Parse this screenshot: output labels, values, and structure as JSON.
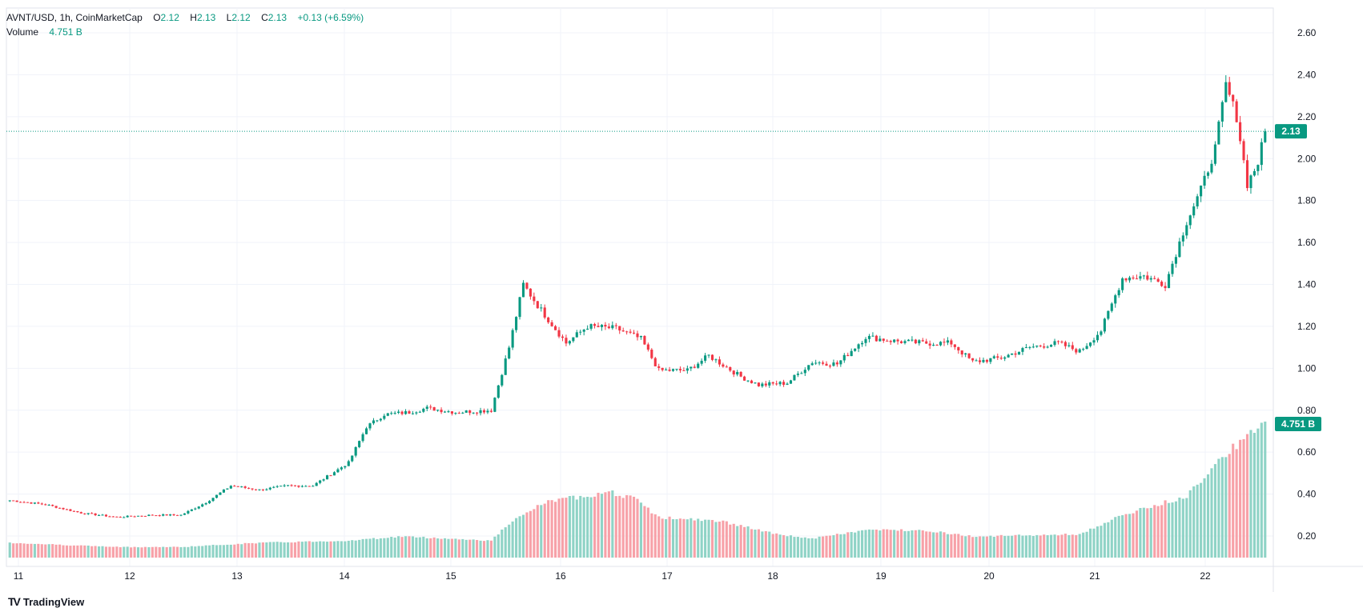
{
  "header": {
    "symbol": "AVNT/USD, 1h, CoinMarketCap",
    "o_label": "O",
    "o_value": "2.12",
    "h_label": "H",
    "h_value": "2.13",
    "l_label": "L",
    "l_value": "2.12",
    "c_label": "C",
    "c_value": "2.13",
    "change": "+0.13 (+6.59%)",
    "volume_label": "Volume",
    "volume_value": "4.751 B"
  },
  "price_badge": "2.13",
  "volume_badge": "4.751 B",
  "branding": "TradingView",
  "colors": {
    "up": "#089981",
    "down": "#f23645",
    "vol_up": "#8fd3c6",
    "vol_down": "#f7a1a8",
    "grid": "#f0f3fa",
    "last_price": "#089981"
  },
  "chart_data": {
    "type": "candlestick",
    "interval": "1h",
    "y_ticks": [
      "2.60",
      "2.40",
      "2.20",
      "2.00",
      "1.80",
      "1.60",
      "1.40",
      "1.20",
      "1.00",
      "0.80",
      "0.60",
      "0.40",
      "0.20"
    ],
    "ylim": [
      0.0,
      2.7
    ],
    "x_ticks": [
      "11",
      "12",
      "13",
      "14",
      "15",
      "16",
      "17",
      "18",
      "19",
      "20",
      "21",
      "22"
    ],
    "last_price": 2.13,
    "last_volume": "4.751 B",
    "price_anchors": [
      [
        0,
        0.37
      ],
      [
        10,
        0.35
      ],
      [
        20,
        0.31
      ],
      [
        30,
        0.29
      ],
      [
        40,
        0.3
      ],
      [
        48,
        0.3
      ],
      [
        55,
        0.36
      ],
      [
        62,
        0.44
      ],
      [
        70,
        0.42
      ],
      [
        78,
        0.44
      ],
      [
        85,
        0.44
      ],
      [
        95,
        0.55
      ],
      [
        100,
        0.72
      ],
      [
        105,
        0.78
      ],
      [
        112,
        0.79
      ],
      [
        117,
        0.81
      ],
      [
        125,
        0.79
      ],
      [
        135,
        0.8
      ],
      [
        140,
        1.1
      ],
      [
        144,
        1.4
      ],
      [
        148,
        1.3
      ],
      [
        156,
        1.12
      ],
      [
        162,
        1.2
      ],
      [
        170,
        1.19
      ],
      [
        177,
        1.14
      ],
      [
        182,
        0.99
      ],
      [
        190,
        0.99
      ],
      [
        196,
        1.06
      ],
      [
        205,
        0.96
      ],
      [
        210,
        0.92
      ],
      [
        218,
        0.93
      ],
      [
        225,
        1.03
      ],
      [
        232,
        1.02
      ],
      [
        240,
        1.15
      ],
      [
        248,
        1.13
      ],
      [
        256,
        1.12
      ],
      [
        264,
        1.12
      ],
      [
        270,
        1.03
      ],
      [
        278,
        1.05
      ],
      [
        286,
        1.1
      ],
      [
        294,
        1.12
      ],
      [
        300,
        1.08
      ],
      [
        306,
        1.18
      ],
      [
        312,
        1.43
      ],
      [
        318,
        1.44
      ],
      [
        324,
        1.4
      ],
      [
        330,
        1.7
      ],
      [
        334,
        1.85
      ],
      [
        338,
        2.05
      ],
      [
        341,
        2.35
      ],
      [
        344,
        2.2
      ],
      [
        347,
        1.88
      ],
      [
        350,
        1.98
      ],
      [
        352,
        2.13
      ]
    ],
    "volume_anchors": [
      [
        0,
        0.07
      ],
      [
        30,
        0.05
      ],
      [
        48,
        0.05
      ],
      [
        70,
        0.07
      ],
      [
        95,
        0.08
      ],
      [
        110,
        0.1
      ],
      [
        135,
        0.08
      ],
      [
        140,
        0.16
      ],
      [
        150,
        0.26
      ],
      [
        168,
        0.31
      ],
      [
        175,
        0.28
      ],
      [
        182,
        0.19
      ],
      [
        200,
        0.17
      ],
      [
        215,
        0.11
      ],
      [
        225,
        0.09
      ],
      [
        240,
        0.13
      ],
      [
        256,
        0.13
      ],
      [
        270,
        0.1
      ],
      [
        300,
        0.11
      ],
      [
        312,
        0.2
      ],
      [
        330,
        0.29
      ],
      [
        340,
        0.48
      ],
      [
        352,
        0.63
      ]
    ],
    "vol_scale_note": "volume shown in billions relative to badge 4.751 B",
    "candle_count": 353
  }
}
